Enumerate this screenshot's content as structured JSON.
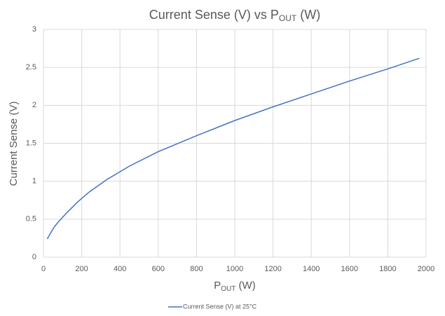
{
  "chart_data": {
    "type": "line",
    "title": [
      "Current Sense (V) vs P",
      "OUT",
      " (W)"
    ],
    "x_label": [
      "P",
      "OUT",
      " (W)"
    ],
    "y_label": "Current  Sense (V)",
    "xlim": [
      0,
      2000
    ],
    "xticks": [
      0,
      200,
      400,
      600,
      800,
      1000,
      1200,
      1400,
      1600,
      1800,
      2000
    ],
    "ylim": [
      0,
      3
    ],
    "yticks": [
      0,
      0.5,
      1,
      1.5,
      2,
      2.5,
      3
    ],
    "grid": true,
    "legend": "bottom",
    "x": [
      20,
      40,
      60,
      80,
      120,
      180,
      240,
      330,
      450,
      600,
      800,
      1000,
      1200,
      1400,
      1600,
      1800,
      1965
    ],
    "series": [
      {
        "name": "Current Sense (V) at 25°C",
        "color": "#4472c4",
        "values": [
          0.24,
          0.33,
          0.41,
          0.47,
          0.58,
          0.73,
          0.86,
          1.02,
          1.2,
          1.39,
          1.6,
          1.8,
          1.98,
          2.15,
          2.32,
          2.48,
          2.62
        ]
      }
    ]
  }
}
